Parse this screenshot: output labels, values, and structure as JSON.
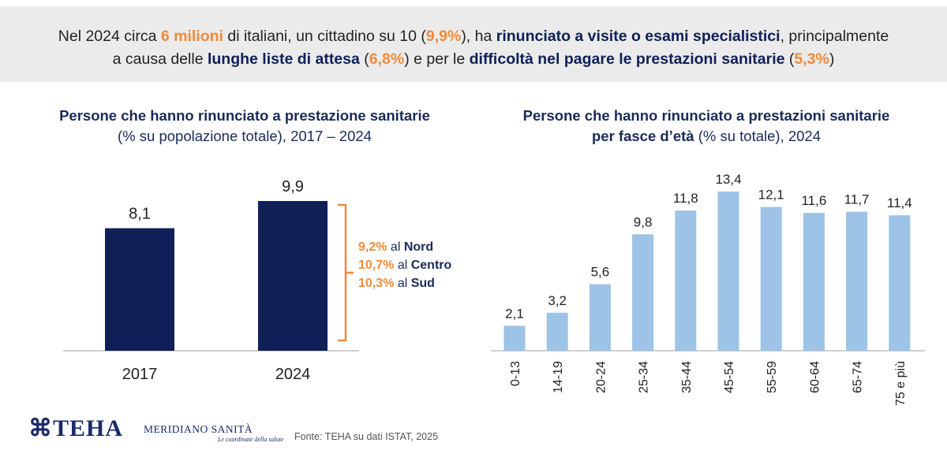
{
  "banner": {
    "t1": "Nel 2024 circa ",
    "t2": "6 milioni",
    "t3": " di italiani, un cittadino su 10 (",
    "t4": "9,9%",
    "t5": "), ha ",
    "t6": "rinunciato a visite o esami specialistici",
    "t7": ", principalmente",
    "t8": "a causa delle ",
    "t9": "lunghe liste di attesa",
    "t10": " (",
    "t11": "6,8%",
    "t12": ") e per le ",
    "t13": "difficoltà nel pagare le prestazioni sanitarie",
    "t14": " (",
    "t15": "5,3%",
    "t16": ")"
  },
  "left_title": {
    "line1": "Persone che hanno rinunciato a prestazione sanitarie",
    "line2": "(% su popolazione totale), 2017 – 2024"
  },
  "right_title": {
    "line1": "Persone che hanno rinunciato a prestazioni sanitarie",
    "line2_bold": "per fasce d’età",
    "line2_rest": " (% su totale), 2024"
  },
  "regions": [
    {
      "pct": "9,2%",
      "mid": " al ",
      "name": "Nord"
    },
    {
      "pct": "10,7%",
      "mid": " al ",
      "name": "Centro"
    },
    {
      "pct": "10,3%",
      "mid": " al ",
      "name": "Sud"
    }
  ],
  "colors": {
    "dark_bar": "#0f2058",
    "light_bar": "#9dc3e6",
    "accent": "#f08a3c"
  },
  "chart_data": [
    {
      "type": "bar",
      "title": "Persone che hanno rinunciato a prestazione sanitarie",
      "subtitle": "(% su popolazione totale), 2017 – 2024",
      "categories": [
        "2017",
        "2024"
      ],
      "values": [
        8.1,
        9.9
      ],
      "value_labels": [
        "8,1",
        "9,9"
      ],
      "ylim": [
        0,
        10.5
      ]
    },
    {
      "type": "bar",
      "title": "Persone che hanno rinunciato a prestazioni sanitarie per fasce d’età",
      "subtitle": "(% su totale), 2024",
      "categories": [
        "0-13",
        "14-19",
        "20-24",
        "25-34",
        "35-44",
        "45-54",
        "55-59",
        "60-64",
        "65-74",
        "75 e più"
      ],
      "values": [
        2.1,
        3.2,
        5.6,
        9.8,
        11.8,
        13.4,
        12.1,
        11.6,
        11.7,
        11.4
      ],
      "value_labels": [
        "2,1",
        "3,2",
        "5,6",
        "9,8",
        "11,8",
        "13,4",
        "12,1",
        "11,6",
        "11,7",
        "11,4"
      ],
      "ylim": [
        0,
        15
      ]
    }
  ],
  "footer": {
    "logo_teha": "⌘TEHA",
    "logo_meridiano": "MERIDIANO SANITÀ",
    "logo_tagline": "Le coordinate della salute",
    "source": "Fonte: TEHA su dati ISTAT, 2025"
  }
}
